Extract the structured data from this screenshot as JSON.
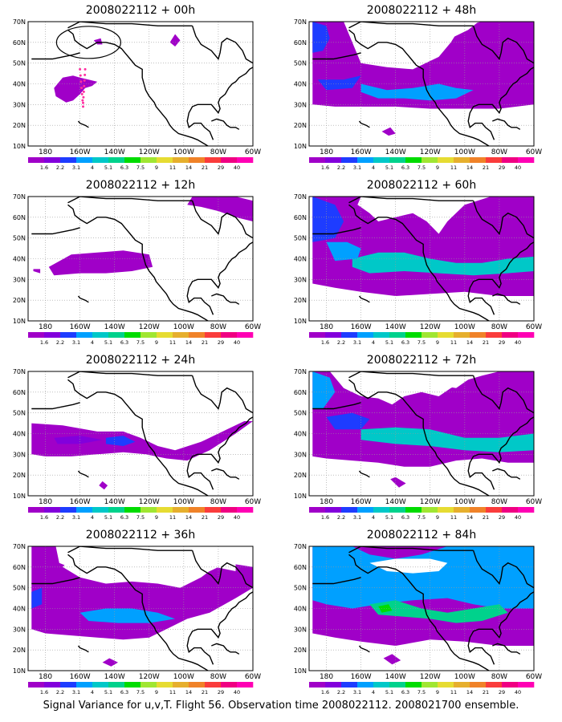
{
  "panels": [
    {
      "title": "2008022112 + 00h",
      "lead_hours": 0
    },
    {
      "title": "2008022112 + 48h",
      "lead_hours": 48
    },
    {
      "title": "2008022112 + 12h",
      "lead_hours": 12
    },
    {
      "title": "2008022112 + 60h",
      "lead_hours": 60
    },
    {
      "title": "2008022112 + 24h",
      "lead_hours": 24
    },
    {
      "title": "2008022112 + 72h",
      "lead_hours": 72
    },
    {
      "title": "2008022112 + 36h",
      "lead_hours": 36
    },
    {
      "title": "2008022112 + 84h",
      "lead_hours": 84
    }
  ],
  "axes": {
    "lat_labels": [
      "70N",
      "60N",
      "50N",
      "40N",
      "30N",
      "20N",
      "10N"
    ],
    "lon_labels": [
      "180",
      "160W",
      "140W",
      "120W",
      "100W",
      "80W",
      "60W"
    ]
  },
  "colorbar": {
    "labels": [
      "1.6",
      "2.2",
      "3.1",
      "4",
      "5.1",
      "6.3",
      "7.5",
      "9",
      "11",
      "14",
      "21",
      "29",
      "40"
    ],
    "colors": [
      "#a000c8",
      "#8200dc",
      "#1e3cff",
      "#00a0ff",
      "#00c8c8",
      "#00d28c",
      "#00dc00",
      "#a0e632",
      "#e6dc32",
      "#e6af2d",
      "#f08228",
      "#fa3c3c",
      "#f00082",
      "#ff00b4"
    ]
  },
  "footer": "Signal Variance for u,v,T. Flight 56. Observation time 2008022112. 2008021700 ensemble."
}
